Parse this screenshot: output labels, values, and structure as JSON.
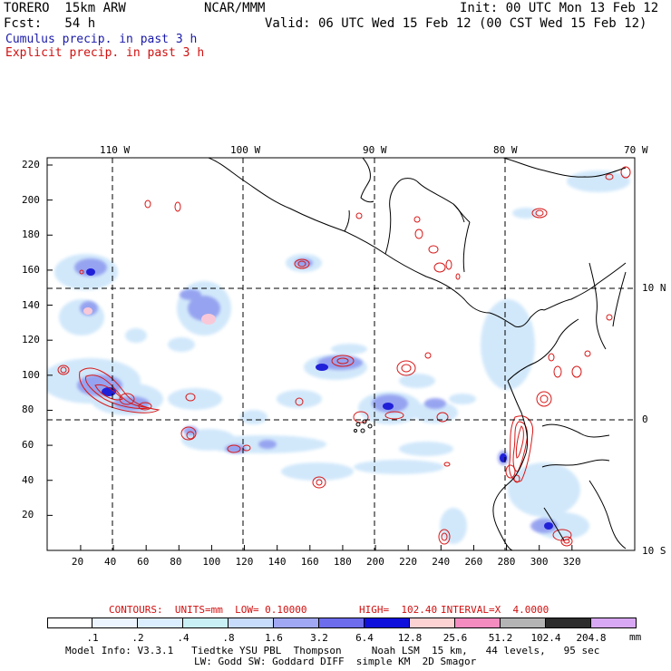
{
  "header": {
    "model": "TORERO  15km ARW",
    "org": "NCAR/MMM",
    "init": "Init: 00 UTC Mon 13 Feb 12",
    "fcst": "Fcst:   54 h",
    "valid": "Valid: 06 UTC Wed 15 Feb 12 (00 CST Wed 15 Feb 12)",
    "legend_cumulus": "Cumulus precip. in past 3 h",
    "legend_explicit": "Explicit precip. in past 3 h"
  },
  "map": {
    "lon_labels": [
      "110 W",
      "100 W",
      "90 W",
      "80 W",
      "70 W"
    ],
    "lat_labels": [
      "10 N",
      "0",
      "10 S"
    ],
    "y_ticks": [
      "220",
      "200",
      "180",
      "160",
      "140",
      "120",
      "100",
      "80",
      "60",
      "40",
      "20"
    ],
    "x_ticks": [
      "20",
      "40",
      "60",
      "80",
      "100",
      "120",
      "140",
      "160",
      "180",
      "200",
      "220",
      "240",
      "260",
      "280",
      "300",
      "320"
    ]
  },
  "contours": {
    "units_label": "CONTOURS:  UNITS=mm  LOW= 0.10000",
    "high_label": "HIGH=  102.40",
    "interval_label": "INTERVAL=X  4.0000"
  },
  "colorbar": {
    "labels": [
      ".1",
      ".2",
      ".4",
      ".8",
      "1.6",
      "3.2",
      "6.4",
      "12.8",
      "25.6",
      "51.2",
      "102.4",
      "204.8"
    ],
    "unit": "mm",
    "colors": [
      "#ffffff",
      "#ecf4ff",
      "#dbeeff",
      "#c9f0f4",
      "#c6dcfa",
      "#a0a8f4",
      "#6c6cec",
      "#1010dc",
      "#fcd2d2",
      "#f48cc0",
      "#b4b4b4",
      "#2c2c2c",
      "#d8a8f4"
    ]
  },
  "footer": {
    "line1": "Model Info: V3.3.1   Tiedtke YSU PBL  Thompson     Noah LSM  15 km,   44 levels,   95 sec",
    "line2": "LW: Godd SW: Goddard DIFF  simple KM  2D Smagor"
  }
}
